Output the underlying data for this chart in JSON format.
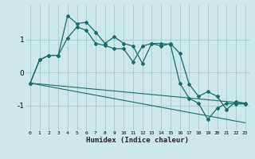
{
  "xlabel": "Humidex (Indice chaleur)",
  "background_color": "#cce8e8",
  "grid_color": "#aacece",
  "line_color": "#1a6b6b",
  "x_data": [
    0,
    1,
    2,
    3,
    4,
    5,
    6,
    7,
    8,
    9,
    10,
    11,
    12,
    13,
    14,
    15,
    16,
    17,
    18,
    19,
    20,
    21,
    22,
    23
  ],
  "series1": [
    -0.32,
    0.38,
    0.52,
    0.52,
    1.05,
    1.38,
    1.28,
    0.88,
    0.82,
    0.72,
    0.72,
    0.32,
    0.8,
    0.88,
    0.8,
    0.88,
    0.58,
    -0.35,
    -0.72,
    -0.58,
    -0.72,
    -1.12,
    -0.88,
    -0.93
  ],
  "series2": [
    -0.32,
    0.38,
    0.52,
    0.52,
    1.72,
    1.48,
    1.52,
    1.22,
    0.88,
    1.08,
    0.88,
    0.8,
    0.28,
    0.88,
    0.88,
    0.85,
    -0.32,
    -0.78,
    -0.93,
    -1.42,
    -1.08,
    -0.93,
    -0.95,
    -0.95
  ],
  "trend1_x": [
    0,
    23
  ],
  "trend1_y": [
    -0.32,
    -0.93
  ],
  "trend2_x": [
    0,
    23
  ],
  "trend2_y": [
    -0.32,
    -1.52
  ],
  "ylim": [
    -1.75,
    2.05
  ],
  "yticks": [
    -1,
    0,
    1
  ],
  "xlim": [
    -0.5,
    23.5
  ]
}
